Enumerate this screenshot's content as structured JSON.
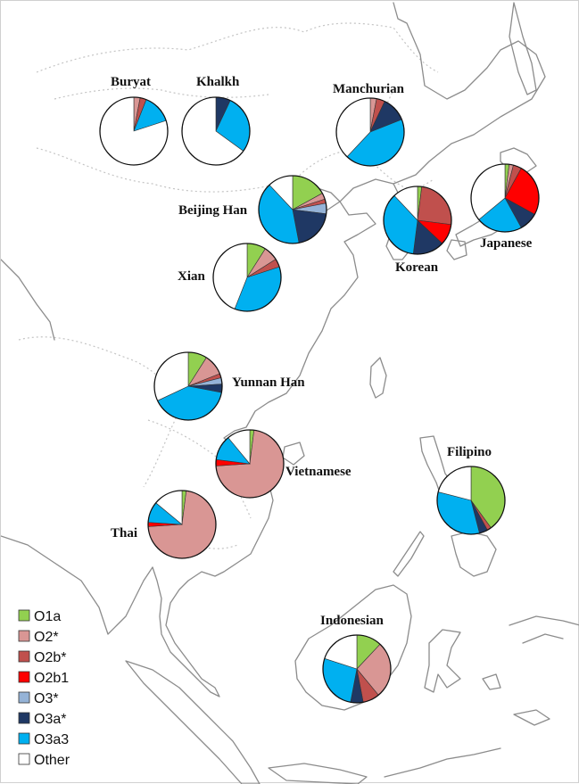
{
  "legend": [
    {
      "label": "O1a",
      "color": "#92d050"
    },
    {
      "label": "O2*",
      "color": "#d99694"
    },
    {
      "label": "O2b*",
      "color": "#c0504d"
    },
    {
      "label": "O2b1",
      "color": "#ff0000"
    },
    {
      "label": "O3*",
      "color": "#95b3d7"
    },
    {
      "label": "O3a*",
      "color": "#1f3864"
    },
    {
      "label": "O3a3",
      "color": "#00b0f0"
    },
    {
      "label": "Other",
      "color": "#ffffff"
    }
  ],
  "order": [
    "O1a",
    "O2*",
    "O2b*",
    "O2b1",
    "O3*",
    "O3a*",
    "O3a3",
    "Other"
  ],
  "populations": [
    {
      "id": "buryat",
      "name": "Buryat",
      "values": [
        0,
        3,
        3,
        0,
        0,
        0,
        14,
        80
      ]
    },
    {
      "id": "khalkh",
      "name": "Khalkh",
      "values": [
        0,
        0,
        0,
        0,
        0,
        7,
        28,
        65
      ]
    },
    {
      "id": "manchurian",
      "name": "Manchurian",
      "values": [
        0,
        3,
        4,
        0,
        0,
        12,
        43,
        38
      ]
    },
    {
      "id": "beijing-han",
      "name": "Beijing Han",
      "values": [
        17,
        3,
        2,
        0,
        5,
        20,
        41,
        12
      ]
    },
    {
      "id": "korean",
      "name": "Korean",
      "values": [
        2,
        0,
        25,
        10,
        0,
        15,
        36,
        12
      ]
    },
    {
      "id": "japanese",
      "name": "Japanese",
      "values": [
        2,
        2,
        4,
        25,
        0,
        9,
        22,
        36
      ]
    },
    {
      "id": "xian",
      "name": "Xian",
      "values": [
        9,
        7,
        4,
        0,
        0,
        0,
        36,
        44
      ]
    },
    {
      "id": "yunnan-han",
      "name": "Yunnan Han",
      "values": [
        9,
        10,
        2,
        0,
        3,
        4,
        40,
        32
      ]
    },
    {
      "id": "vietnamese",
      "name": "Vietnamese",
      "values": [
        2,
        72,
        0,
        3,
        0,
        0,
        12,
        11
      ]
    },
    {
      "id": "thai",
      "name": "Thai",
      "values": [
        2,
        72,
        0,
        2,
        0,
        0,
        10,
        14
      ]
    },
    {
      "id": "filipino",
      "name": "Filipino",
      "values": [
        40,
        0,
        2,
        0,
        0,
        4,
        33,
        21
      ]
    },
    {
      "id": "indonesian",
      "name": "Indonesian",
      "values": [
        12,
        27,
        8,
        0,
        0,
        6,
        27,
        20
      ]
    }
  ]
}
